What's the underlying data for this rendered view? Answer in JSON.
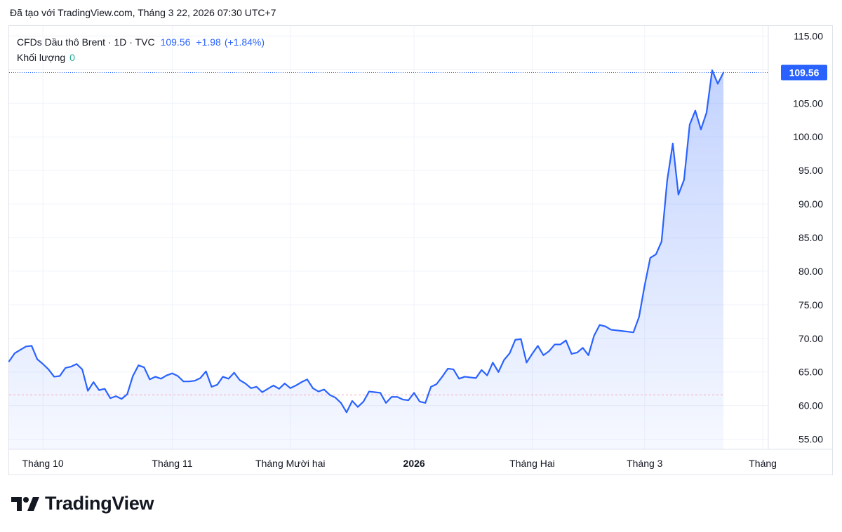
{
  "header": {
    "text": "Đã tạo với TradingView.com, Tháng 3 22, 2026 07:30 UTC+7"
  },
  "legend": {
    "symbol": "CFDs Dầu thô Brent · 1D · TVC",
    "last": "109.56",
    "change": "+1.98",
    "change_pct": "(+1.84%)",
    "volume_label": "Khối lượng",
    "volume_value": "0"
  },
  "brand": {
    "name": "TradingView"
  },
  "colors": {
    "line": "#2962ff",
    "fill": "#2962ff",
    "badge": "#2962ff",
    "volume": "#22ab94"
  },
  "chart_data": {
    "type": "area",
    "title": "",
    "xlabel": "",
    "ylabel": "",
    "ylim": [
      53.5,
      116.5
    ],
    "y_ticks": [
      "115.00",
      "110.00",
      "105.00",
      "100.00",
      "95.00",
      "90.00",
      "85.00",
      "80.00",
      "75.00",
      "70.00",
      "65.00",
      "60.00",
      "55.00"
    ],
    "x_ticks": [
      {
        "label": "Tháng 10",
        "index": 6,
        "bold": false
      },
      {
        "label": "Tháng 11",
        "index": 29,
        "bold": false
      },
      {
        "label": "Tháng Mười hai",
        "index": 50,
        "bold": false
      },
      {
        "label": "2026",
        "index": 72,
        "bold": true
      },
      {
        "label": "Tháng Hai",
        "index": 93,
        "bold": false
      },
      {
        "label": "Tháng 3",
        "index": 113,
        "bold": false
      },
      {
        "label": "Tháng",
        "index": 134,
        "bold": false
      }
    ],
    "last_price_label": "109.56",
    "reference_level": 61.6,
    "grid": true,
    "series": [
      {
        "values": [
          66.6,
          67.8,
          68.3,
          68.8,
          68.9,
          66.9,
          66.2,
          65.4,
          64.3,
          64.4,
          65.6,
          65.8,
          66.2,
          65.4,
          62.2,
          63.5,
          62.3,
          62.5,
          61.1,
          61.4,
          61.0,
          61.7,
          64.4,
          66.0,
          65.7,
          63.9,
          64.3,
          64.0,
          64.5,
          64.8,
          64.4,
          63.6,
          63.6,
          63.7,
          64.1,
          65.1,
          62.8,
          63.1,
          64.3,
          64.0,
          64.9,
          63.8,
          63.3,
          62.6,
          62.8,
          62.0,
          62.5,
          63.0,
          62.5,
          63.3,
          62.6,
          63.0,
          63.5,
          63.9,
          62.6,
          62.1,
          62.4,
          61.6,
          61.2,
          60.4,
          59.0,
          60.7,
          59.8,
          60.6,
          62.1,
          62.0,
          61.9,
          60.4,
          61.3,
          61.3,
          60.9,
          60.8,
          61.9,
          60.6,
          60.4,
          62.8,
          63.2,
          64.3,
          65.5,
          65.4,
          64.0,
          64.3,
          64.2,
          64.1,
          65.3,
          64.5,
          66.4,
          65.0,
          66.8,
          67.8,
          69.8,
          69.9,
          66.4,
          67.7,
          68.9,
          67.5,
          68.1,
          69.1,
          69.1,
          69.7,
          67.7,
          67.9,
          68.6,
          67.5,
          70.4,
          72.0,
          71.8,
          71.3,
          71.2,
          71.1,
          71.0,
          70.9,
          73.2,
          77.9,
          82.0,
          82.5,
          84.4,
          93.5,
          99.0,
          91.4,
          93.6,
          101.8,
          103.9,
          101.1,
          103.6,
          109.9,
          107.9,
          109.56
        ]
      }
    ]
  }
}
